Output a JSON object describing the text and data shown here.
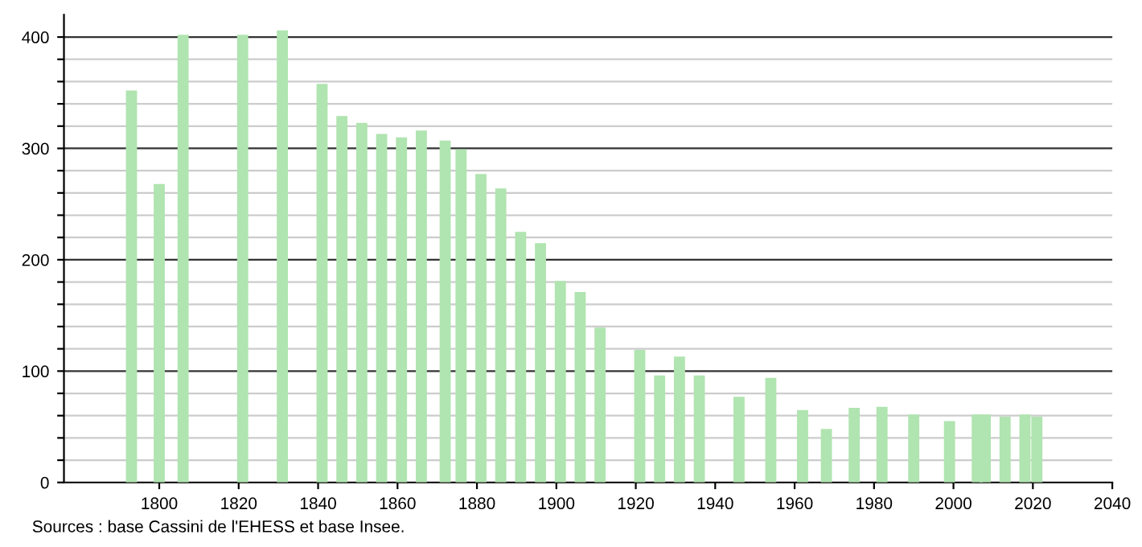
{
  "chart_data": {
    "type": "bar",
    "color": "#b0e4b0",
    "x": [
      1793,
      1800,
      1806,
      1821,
      1831,
      1841,
      1846,
      1851,
      1856,
      1861,
      1866,
      1872,
      1876,
      1881,
      1886,
      1891,
      1896,
      1901,
      1906,
      1911,
      1921,
      1926,
      1931,
      1936,
      1946,
      1954,
      1962,
      1968,
      1975,
      1982,
      1990,
      1999,
      2006,
      2008,
      2013,
      2018,
      2021
    ],
    "values": [
      352,
      268,
      402,
      402,
      406,
      358,
      329,
      323,
      313,
      310,
      316,
      307,
      299,
      277,
      264,
      225,
      215,
      181,
      171,
      139,
      119,
      96,
      113,
      96,
      77,
      94,
      65,
      48,
      67,
      68,
      61,
      55,
      61,
      61,
      59,
      61,
      59
    ],
    "xlim": [
      1776,
      2040
    ],
    "xticks": [
      1800,
      1820,
      1840,
      1860,
      1880,
      1900,
      1920,
      1940,
      1960,
      1980,
      2000,
      2020,
      2040
    ],
    "ylim": [
      0,
      420
    ],
    "yticks": [
      0,
      {
        "value": 20,
        "label": null
      },
      {
        "value": 40,
        "label": null
      },
      {
        "value": 60,
        "label": null
      },
      {
        "value": 80,
        "label": null
      },
      100,
      {
        "value": 120,
        "label": null
      },
      {
        "value": 140,
        "label": null
      },
      {
        "value": 160,
        "label": null
      },
      {
        "value": 180,
        "label": null
      },
      200,
      {
        "value": 220,
        "label": null
      },
      {
        "value": 240,
        "label": null
      },
      {
        "value": 260,
        "label": null
      },
      {
        "value": 280,
        "label": null
      },
      300,
      {
        "value": 320,
        "label": null
      },
      {
        "value": 340,
        "label": null
      },
      {
        "value": 360,
        "label": null
      },
      {
        "value": 380,
        "label": null
      },
      400
    ],
    "grid": "y",
    "annotations": [
      "Sources : base Cassini de l'EHESS et base Insee."
    ]
  }
}
